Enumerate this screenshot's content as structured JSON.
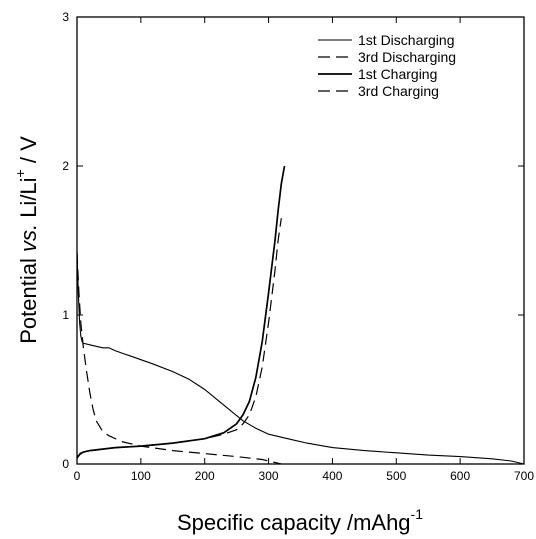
{
  "chart_data": {
    "type": "line",
    "title": "",
    "xlabel": {
      "main": "Specific capacity /mAhg",
      "sup": "-1"
    },
    "ylabel": {
      "pre": "Potential ",
      "italic": "vs.",
      "mid": " Li/Li",
      "sup": "+",
      "post": " / V"
    },
    "xlim": [
      0,
      700
    ],
    "ylim": [
      0,
      3
    ],
    "x_ticks": [
      0,
      100,
      200,
      300,
      400,
      500,
      600,
      700
    ],
    "y_ticks": [
      0,
      1,
      2,
      3
    ],
    "legend_position": "top-right",
    "series": [
      {
        "name": "1st Discharging",
        "style": "solid-thin",
        "x": [
          0,
          2,
          4,
          6,
          8,
          10,
          20,
          30,
          40,
          50,
          60,
          80,
          100,
          120,
          150,
          175,
          200,
          220,
          240,
          260,
          280,
          300,
          330,
          360,
          400,
          450,
          500,
          550,
          600,
          650,
          680,
          700
        ],
        "y": [
          1.42,
          1.15,
          0.95,
          0.86,
          0.82,
          0.81,
          0.8,
          0.79,
          0.78,
          0.78,
          0.76,
          0.73,
          0.7,
          0.67,
          0.62,
          0.57,
          0.5,
          0.43,
          0.36,
          0.29,
          0.24,
          0.2,
          0.17,
          0.14,
          0.11,
          0.09,
          0.075,
          0.06,
          0.05,
          0.035,
          0.02,
          0.0
        ]
      },
      {
        "name": "3rd Discharging",
        "style": "dashed",
        "x": [
          0,
          3,
          6,
          10,
          15,
          20,
          25,
          30,
          40,
          50,
          70,
          100,
          150,
          200,
          250,
          290,
          320
        ],
        "y": [
          1.42,
          1.15,
          0.95,
          0.78,
          0.62,
          0.48,
          0.37,
          0.29,
          0.22,
          0.19,
          0.15,
          0.12,
          0.09,
          0.07,
          0.05,
          0.03,
          0.0
        ]
      },
      {
        "name": "1st Charging",
        "style": "solid-thick",
        "x": [
          0,
          5,
          10,
          20,
          40,
          60,
          100,
          150,
          200,
          230,
          250,
          260,
          270,
          280,
          290,
          300,
          310,
          315,
          320,
          325
        ],
        "y": [
          0.04,
          0.07,
          0.08,
          0.09,
          0.1,
          0.11,
          0.12,
          0.14,
          0.17,
          0.21,
          0.27,
          0.33,
          0.42,
          0.58,
          0.82,
          1.15,
          1.5,
          1.7,
          1.88,
          2.0
        ]
      },
      {
        "name": "3rd Charging",
        "style": "dashed",
        "x": [
          0,
          10,
          20,
          40,
          60,
          100,
          150,
          200,
          230,
          250,
          260,
          270,
          280,
          290,
          300,
          310,
          315,
          320
        ],
        "y": [
          0.05,
          0.08,
          0.09,
          0.1,
          0.11,
          0.12,
          0.14,
          0.17,
          0.2,
          0.23,
          0.27,
          0.33,
          0.45,
          0.65,
          0.95,
          1.3,
          1.5,
          1.65
        ]
      }
    ]
  }
}
